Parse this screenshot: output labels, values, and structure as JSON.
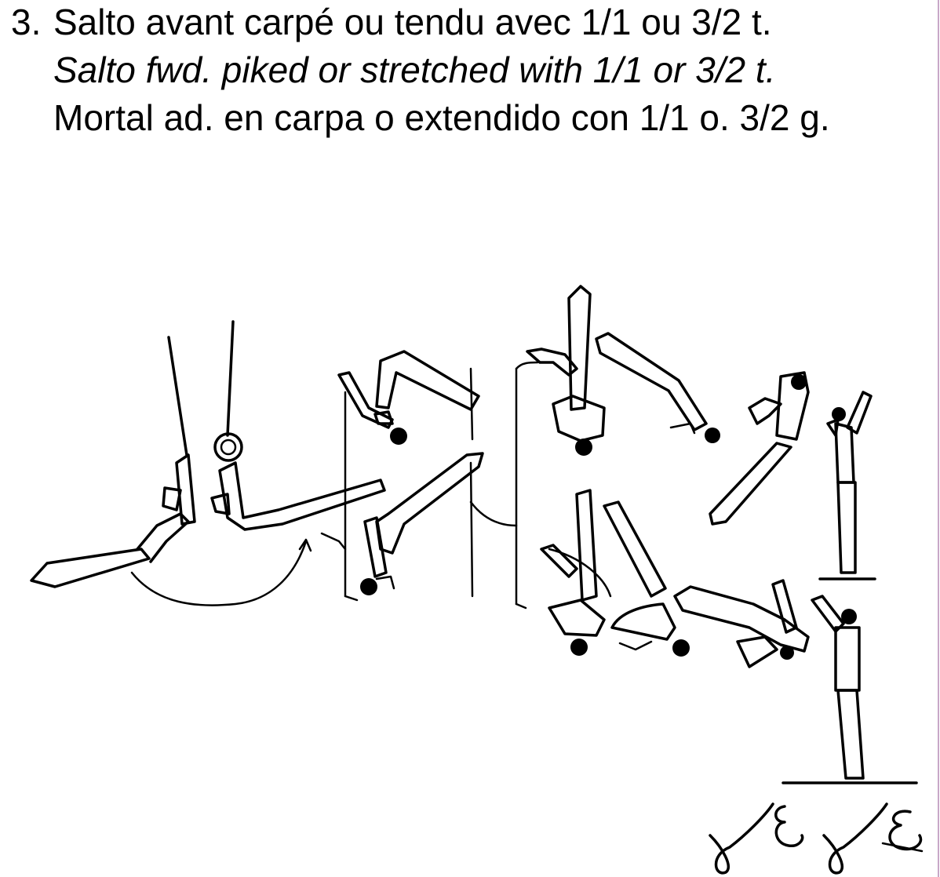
{
  "element": {
    "number": "3.",
    "title_fr": "Salto avant carpé ou tendu avec 1/1 ou 3/2 t.",
    "title_en": "Salto fwd. piked or stretched with 1/1 or 3/2 t.",
    "title_es": "Mortal ad. en carpa o extendido con 1/1 o. 3/2 g."
  },
  "colors": {
    "ink": "#000000",
    "background": "#ffffff",
    "edge_rule": "#c8a8c8"
  }
}
